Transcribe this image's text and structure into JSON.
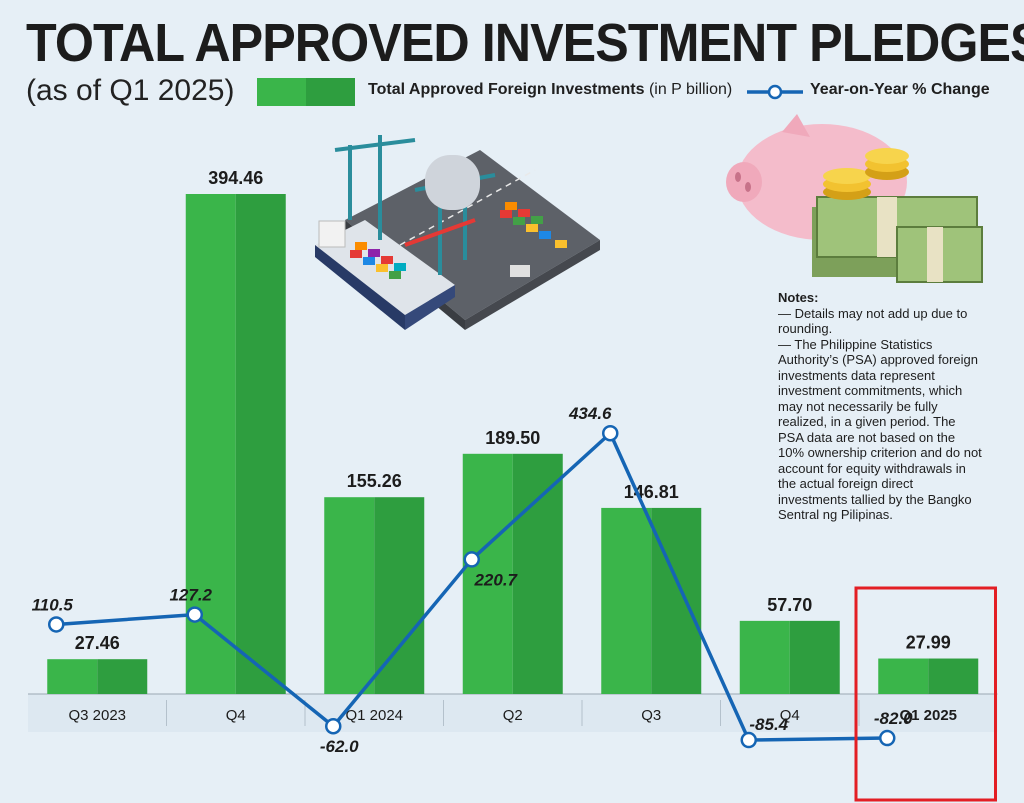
{
  "title": "TOTAL APPROVED INVESTMENT PLEDGES",
  "subtitle": "(as of Q1 2025)",
  "legend": {
    "bar_label": "Total Approved Foreign Investments",
    "bar_unit": "(in P billion)",
    "line_label": "Year-on-Year % Change"
  },
  "notes": {
    "title": "Notes:",
    "items": [
      "— Details may not add up due to rounding.",
      "— The Philippine Statistics Authority’s (PSA) approved foreign investments data represent investment commitments, which may not necessarily be fully realized, in a given period. The PSA data are not based on the 10% ownership criterion and do not account for equity withdrawals in the actual foreign direct investments tallied by the Bangko Sentral ng Pilipinas."
    ]
  },
  "colors": {
    "bar": "#3ab54a",
    "bar_dark": "#2e9e3f",
    "line": "#1565b4",
    "highlight": "#e31e24"
  },
  "chart_data": {
    "type": "bar",
    "categories": [
      "Q3 2023",
      "Q4",
      "Q1 2024",
      "Q2",
      "Q3",
      "Q4",
      "Q1 2025"
    ],
    "series": [
      {
        "name": "Total Approved Foreign Investments (in P billion)",
        "type": "bar",
        "values": [
          27.46,
          394.46,
          155.26,
          189.5,
          146.81,
          57.7,
          27.99
        ],
        "labels": [
          "27.46",
          "394.46",
          "155.26",
          "189.50",
          "146.81",
          "57.70",
          "27.99"
        ]
      },
      {
        "name": "Year-on-Year % Change",
        "type": "line",
        "values": [
          110.5,
          127.2,
          -62.0,
          220.7,
          434.6,
          -85.4,
          -82.0
        ],
        "labels": [
          "110.5",
          "127.2",
          "-62.0",
          "220.7",
          "434.6",
          "-85.4",
          "-82.0"
        ]
      }
    ],
    "highlighted_category": "Q1 2025",
    "legend_position": "top"
  }
}
